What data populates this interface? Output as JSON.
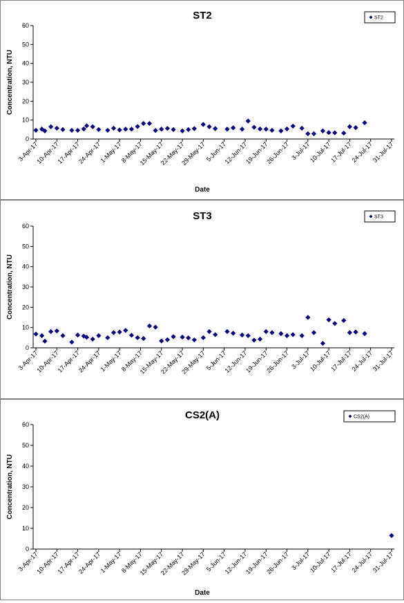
{
  "chart_data": [
    {
      "type": "scatter",
      "title": "ST2",
      "xlabel": "Date",
      "ylabel": "Concentration, NTU",
      "ylim": [
        0,
        60
      ],
      "yticks": [
        0,
        10,
        20,
        30,
        40,
        50,
        60
      ],
      "xlim": [
        "3-Apr-17",
        "31-Jul-17"
      ],
      "xticks": [
        "3-Apr-17",
        "10-Apr-17",
        "17-Apr-17",
        "24-Apr-17",
        "1-May-17",
        "8-May-17",
        "15-May-17",
        "22-May-17",
        "29-May-17",
        "5-Jun-17",
        "12-Jun-17",
        "19-Jun-17",
        "26-Jun-17",
        "3-Jul-17",
        "10-Jul-17",
        "17-Jul-17",
        "24-Jul-17",
        "31-Jul-17"
      ],
      "grid": false,
      "legend_position": "top-right",
      "color": "#000080",
      "series": [
        {
          "name": "ST2",
          "points": [
            {
              "x": "3-Apr-17",
              "y": 4.6
            },
            {
              "x": "5-Apr-17",
              "y": 5.2
            },
            {
              "x": "6-Apr-17",
              "y": 4.3
            },
            {
              "x": "8-Apr-17",
              "y": 6.5
            },
            {
              "x": "10-Apr-17",
              "y": 5.7
            },
            {
              "x": "12-Apr-17",
              "y": 5.0
            },
            {
              "x": "15-Apr-17",
              "y": 4.6
            },
            {
              "x": "17-Apr-17",
              "y": 4.6
            },
            {
              "x": "19-Apr-17",
              "y": 5.3
            },
            {
              "x": "20-Apr-17",
              "y": 7.0
            },
            {
              "x": "22-Apr-17",
              "y": 6.5
            },
            {
              "x": "24-Apr-17",
              "y": 5.0
            },
            {
              "x": "27-Apr-17",
              "y": 4.6
            },
            {
              "x": "29-Apr-17",
              "y": 5.7
            },
            {
              "x": "1-May-17",
              "y": 4.8
            },
            {
              "x": "3-May-17",
              "y": 5.2
            },
            {
              "x": "5-May-17",
              "y": 5.2
            },
            {
              "x": "7-May-17",
              "y": 6.6
            },
            {
              "x": "9-May-17",
              "y": 8.2
            },
            {
              "x": "11-May-17",
              "y": 8.2
            },
            {
              "x": "13-May-17",
              "y": 4.5
            },
            {
              "x": "15-May-17",
              "y": 5.2
            },
            {
              "x": "17-May-17",
              "y": 5.6
            },
            {
              "x": "19-May-17",
              "y": 5.0
            },
            {
              "x": "22-May-17",
              "y": 4.3
            },
            {
              "x": "24-May-17",
              "y": 5.0
            },
            {
              "x": "26-May-17",
              "y": 5.5
            },
            {
              "x": "29-May-17",
              "y": 7.7
            },
            {
              "x": "31-May-17",
              "y": 6.5
            },
            {
              "x": "2-Jun-17",
              "y": 5.5
            },
            {
              "x": "6-Jun-17",
              "y": 5.2
            },
            {
              "x": "8-Jun-17",
              "y": 5.9
            },
            {
              "x": "11-Jun-17",
              "y": 5.2
            },
            {
              "x": "13-Jun-17",
              "y": 9.5
            },
            {
              "x": "15-Jun-17",
              "y": 6.2
            },
            {
              "x": "17-Jun-17",
              "y": 5.3
            },
            {
              "x": "19-Jun-17",
              "y": 5.2
            },
            {
              "x": "21-Jun-17",
              "y": 4.6
            },
            {
              "x": "24-Jun-17",
              "y": 4.3
            },
            {
              "x": "26-Jun-17",
              "y": 5.3
            },
            {
              "x": "28-Jun-17",
              "y": 6.8
            },
            {
              "x": "1-Jul-17",
              "y": 5.7
            },
            {
              "x": "3-Jul-17",
              "y": 2.8
            },
            {
              "x": "5-Jul-17",
              "y": 2.8
            },
            {
              "x": "8-Jul-17",
              "y": 4.3
            },
            {
              "x": "10-Jul-17",
              "y": 3.4
            },
            {
              "x": "12-Jul-17",
              "y": 3.3
            },
            {
              "x": "15-Jul-17",
              "y": 3.1
            },
            {
              "x": "17-Jul-17",
              "y": 6.5
            },
            {
              "x": "19-Jul-17",
              "y": 6.0
            },
            {
              "x": "22-Jul-17",
              "y": 8.6
            }
          ]
        }
      ]
    },
    {
      "type": "scatter",
      "title": "ST3",
      "xlabel": "",
      "ylabel": "Concentration, NTU",
      "ylim": [
        0,
        60
      ],
      "yticks": [
        0,
        10,
        20,
        30,
        40,
        50,
        60
      ],
      "xlim": [
        "3-Apr-17",
        "31-Jul-17"
      ],
      "xticks": [
        "3-Apr-17",
        "10-Apr-17",
        "17-Apr-17",
        "24-Apr-17",
        "1-May-17",
        "8-May-17",
        "15-May-17",
        "22-May-17",
        "29-May-17",
        "5-Jun-17",
        "12-Jun-17",
        "19-Jun-17",
        "26-Jun-17",
        "3-Jul-17",
        "10-Jul-17",
        "17-Jul-17",
        "24-Jul-17",
        "31-Jul-17"
      ],
      "grid": false,
      "legend_position": "top-right",
      "color": "#000080",
      "series": [
        {
          "name": "ST3",
          "points": [
            {
              "x": "3-Apr-17",
              "y": 6.8
            },
            {
              "x": "5-Apr-17",
              "y": 6.0
            },
            {
              "x": "6-Apr-17",
              "y": 3.3
            },
            {
              "x": "8-Apr-17",
              "y": 8.0
            },
            {
              "x": "10-Apr-17",
              "y": 8.3
            },
            {
              "x": "12-Apr-17",
              "y": 6.0
            },
            {
              "x": "15-Apr-17",
              "y": 2.8
            },
            {
              "x": "17-Apr-17",
              "y": 6.3
            },
            {
              "x": "19-Apr-17",
              "y": 5.8
            },
            {
              "x": "20-Apr-17",
              "y": 5.2
            },
            {
              "x": "22-Apr-17",
              "y": 4.3
            },
            {
              "x": "24-Apr-17",
              "y": 6.0
            },
            {
              "x": "27-Apr-17",
              "y": 5.0
            },
            {
              "x": "29-Apr-17",
              "y": 7.5
            },
            {
              "x": "1-May-17",
              "y": 7.8
            },
            {
              "x": "3-May-17",
              "y": 8.6
            },
            {
              "x": "5-May-17",
              "y": 6.2
            },
            {
              "x": "7-May-17",
              "y": 5.0
            },
            {
              "x": "9-May-17",
              "y": 4.6
            },
            {
              "x": "11-May-17",
              "y": 10.8
            },
            {
              "x": "13-May-17",
              "y": 10.2
            },
            {
              "x": "15-May-17",
              "y": 3.4
            },
            {
              "x": "17-May-17",
              "y": 4.0
            },
            {
              "x": "19-May-17",
              "y": 5.5
            },
            {
              "x": "22-May-17",
              "y": 5.3
            },
            {
              "x": "24-May-17",
              "y": 4.9
            },
            {
              "x": "26-May-17",
              "y": 3.9
            },
            {
              "x": "29-May-17",
              "y": 5.0
            },
            {
              "x": "31-May-17",
              "y": 8.0
            },
            {
              "x": "2-Jun-17",
              "y": 6.5
            },
            {
              "x": "6-Jun-17",
              "y": 8.0
            },
            {
              "x": "8-Jun-17",
              "y": 7.2
            },
            {
              "x": "11-Jun-17",
              "y": 6.3
            },
            {
              "x": "13-Jun-17",
              "y": 6.0
            },
            {
              "x": "15-Jun-17",
              "y": 3.8
            },
            {
              "x": "17-Jun-17",
              "y": 4.3
            },
            {
              "x": "19-Jun-17",
              "y": 8.0
            },
            {
              "x": "21-Jun-17",
              "y": 7.5
            },
            {
              "x": "24-Jun-17",
              "y": 7.0
            },
            {
              "x": "26-Jun-17",
              "y": 6.0
            },
            {
              "x": "28-Jun-17",
              "y": 6.5
            },
            {
              "x": "1-Jul-17",
              "y": 6.0
            },
            {
              "x": "3-Jul-17",
              "y": 15.0
            },
            {
              "x": "5-Jul-17",
              "y": 7.5
            },
            {
              "x": "8-Jul-17",
              "y": 2.2
            },
            {
              "x": "10-Jul-17",
              "y": 13.8
            },
            {
              "x": "12-Jul-17",
              "y": 12.0
            },
            {
              "x": "15-Jul-17",
              "y": 13.5
            },
            {
              "x": "17-Jul-17",
              "y": 7.5
            },
            {
              "x": "19-Jul-17",
              "y": 7.8
            },
            {
              "x": "22-Jul-17",
              "y": 7.0
            }
          ]
        }
      ]
    },
    {
      "type": "scatter",
      "title": "CS2(A)",
      "xlabel": "Date",
      "ylabel": "Concentration, NTU",
      "ylim": [
        0,
        60
      ],
      "yticks": [
        0,
        10,
        20,
        30,
        40,
        50,
        60
      ],
      "xlim": [
        "3-Apr-17",
        "31-Jul-17"
      ],
      "xticks": [
        "3-Apr-17",
        "10-Apr-17",
        "17-Apr-17",
        "24-Apr-17",
        "1-May-17",
        "8-May-17",
        "15-May-17",
        "22-May-17",
        "29-May-17",
        "5-Jun-17",
        "12-Jun-17",
        "19-Jun-17",
        "26-Jun-17",
        "3-Jul-17",
        "10-Jul-17",
        "17-Jul-17",
        "24-Jul-17",
        "31-Jul-17"
      ],
      "grid": false,
      "legend_position": "top-right",
      "color": "#000080",
      "series": [
        {
          "name": "CS2(A)",
          "points": [
            {
              "x": "31-Jul-17",
              "y": 6.5
            }
          ]
        }
      ]
    }
  ]
}
